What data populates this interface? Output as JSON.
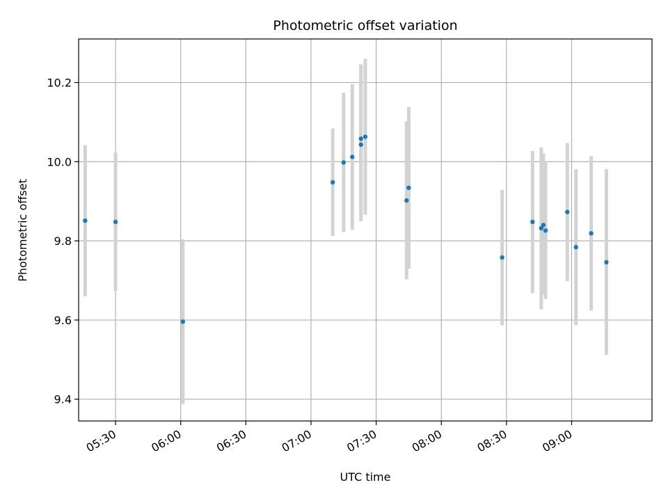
{
  "chart_data": {
    "type": "scatter",
    "title": "Photometric offset variation",
    "xlabel": "UTC time",
    "ylabel": "Photometric offset",
    "x_ticks": [
      "05:30",
      "06:00",
      "06:30",
      "07:00",
      "07:30",
      "08:00",
      "08:30",
      "09:00"
    ],
    "y_ticks": [
      "9.4",
      "9.6",
      "9.8",
      "10.0",
      "10.2"
    ],
    "xlim": [
      "05:13",
      "09:37"
    ],
    "ylim": [
      9.345,
      10.31
    ],
    "grid": true,
    "colors": {
      "point": "#1f77b4",
      "errorbar": "#d3d3d3",
      "grid": "#b0b0b0"
    },
    "series": [
      {
        "points": [
          {
            "x": "05:16",
            "y": 9.851,
            "low": 9.66,
            "high": 10.042
          },
          {
            "x": "05:30",
            "y": 9.848,
            "low": 9.673,
            "high": 10.023
          },
          {
            "x": "06:01",
            "y": 9.596,
            "low": 9.388,
            "high": 9.804
          },
          {
            "x": "07:10",
            "y": 9.948,
            "low": 9.812,
            "high": 10.084
          },
          {
            "x": "07:15",
            "y": 9.998,
            "low": 9.822,
            "high": 10.174
          },
          {
            "x": "07:19",
            "y": 10.012,
            "low": 9.828,
            "high": 10.196
          },
          {
            "x": "07:23",
            "y": 10.058,
            "low": 9.869,
            "high": 10.246
          },
          {
            "x": "07:23",
            "y": 10.043,
            "low": 9.849,
            "high": 10.238
          },
          {
            "x": "07:25",
            "y": 10.063,
            "low": 9.866,
            "high": 10.26
          },
          {
            "x": "07:44",
            "y": 9.902,
            "low": 9.703,
            "high": 10.102
          },
          {
            "x": "07:45",
            "y": 9.934,
            "low": 9.73,
            "high": 10.138
          },
          {
            "x": "08:28",
            "y": 9.758,
            "low": 9.587,
            "high": 9.929
          },
          {
            "x": "08:42",
            "y": 9.848,
            "low": 9.668,
            "high": 10.027
          },
          {
            "x": "08:46",
            "y": 9.832,
            "low": 9.627,
            "high": 10.036
          },
          {
            "x": "08:47",
            "y": 9.84,
            "low": 9.664,
            "high": 10.021
          },
          {
            "x": "08:48",
            "y": 9.826,
            "low": 9.653,
            "high": 9.998
          },
          {
            "x": "08:58",
            "y": 9.873,
            "low": 9.698,
            "high": 10.047
          },
          {
            "x": "09:02",
            "y": 9.784,
            "low": 9.587,
            "high": 9.981
          },
          {
            "x": "09:09",
            "y": 9.819,
            "low": 9.624,
            "high": 10.014
          },
          {
            "x": "09:16",
            "y": 9.746,
            "low": 9.512,
            "high": 9.981
          }
        ]
      }
    ]
  }
}
